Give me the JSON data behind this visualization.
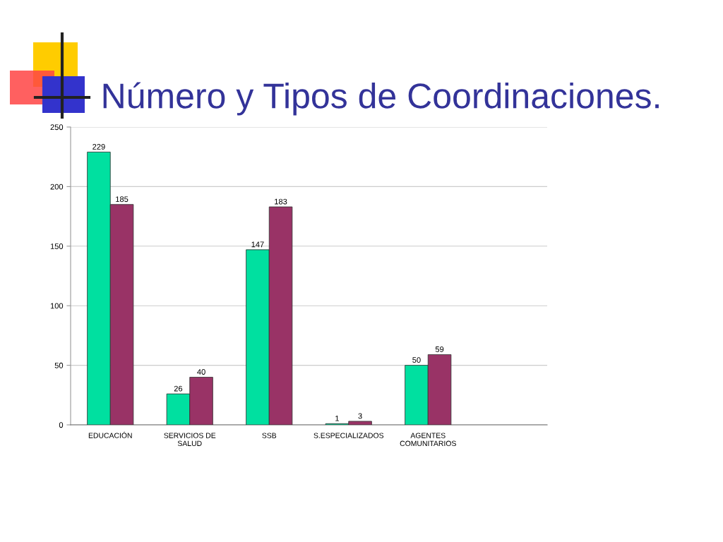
{
  "chart_data": {
    "type": "bar",
    "title": "Número y Tipos de Coordinaciones.",
    "categories": [
      "EDUCACIÓN",
      "SERVICIOS DE\nSALUD",
      "SSB",
      "S.ESPECIALIZADOS",
      "AGENTES\nCOMUNITARIOS",
      null
    ],
    "series": [
      {
        "color": "#00e0a0",
        "values": [
          229,
          26,
          147,
          1,
          50,
          null
        ]
      },
      {
        "color": "#993366",
        "values": [
          185,
          40,
          183,
          3,
          59,
          null
        ]
      }
    ],
    "ylim": [
      0,
      250
    ],
    "yticks": [
      0,
      50,
      100,
      150,
      200,
      250
    ],
    "grid": "y",
    "data_labels": true,
    "legend": false
  }
}
